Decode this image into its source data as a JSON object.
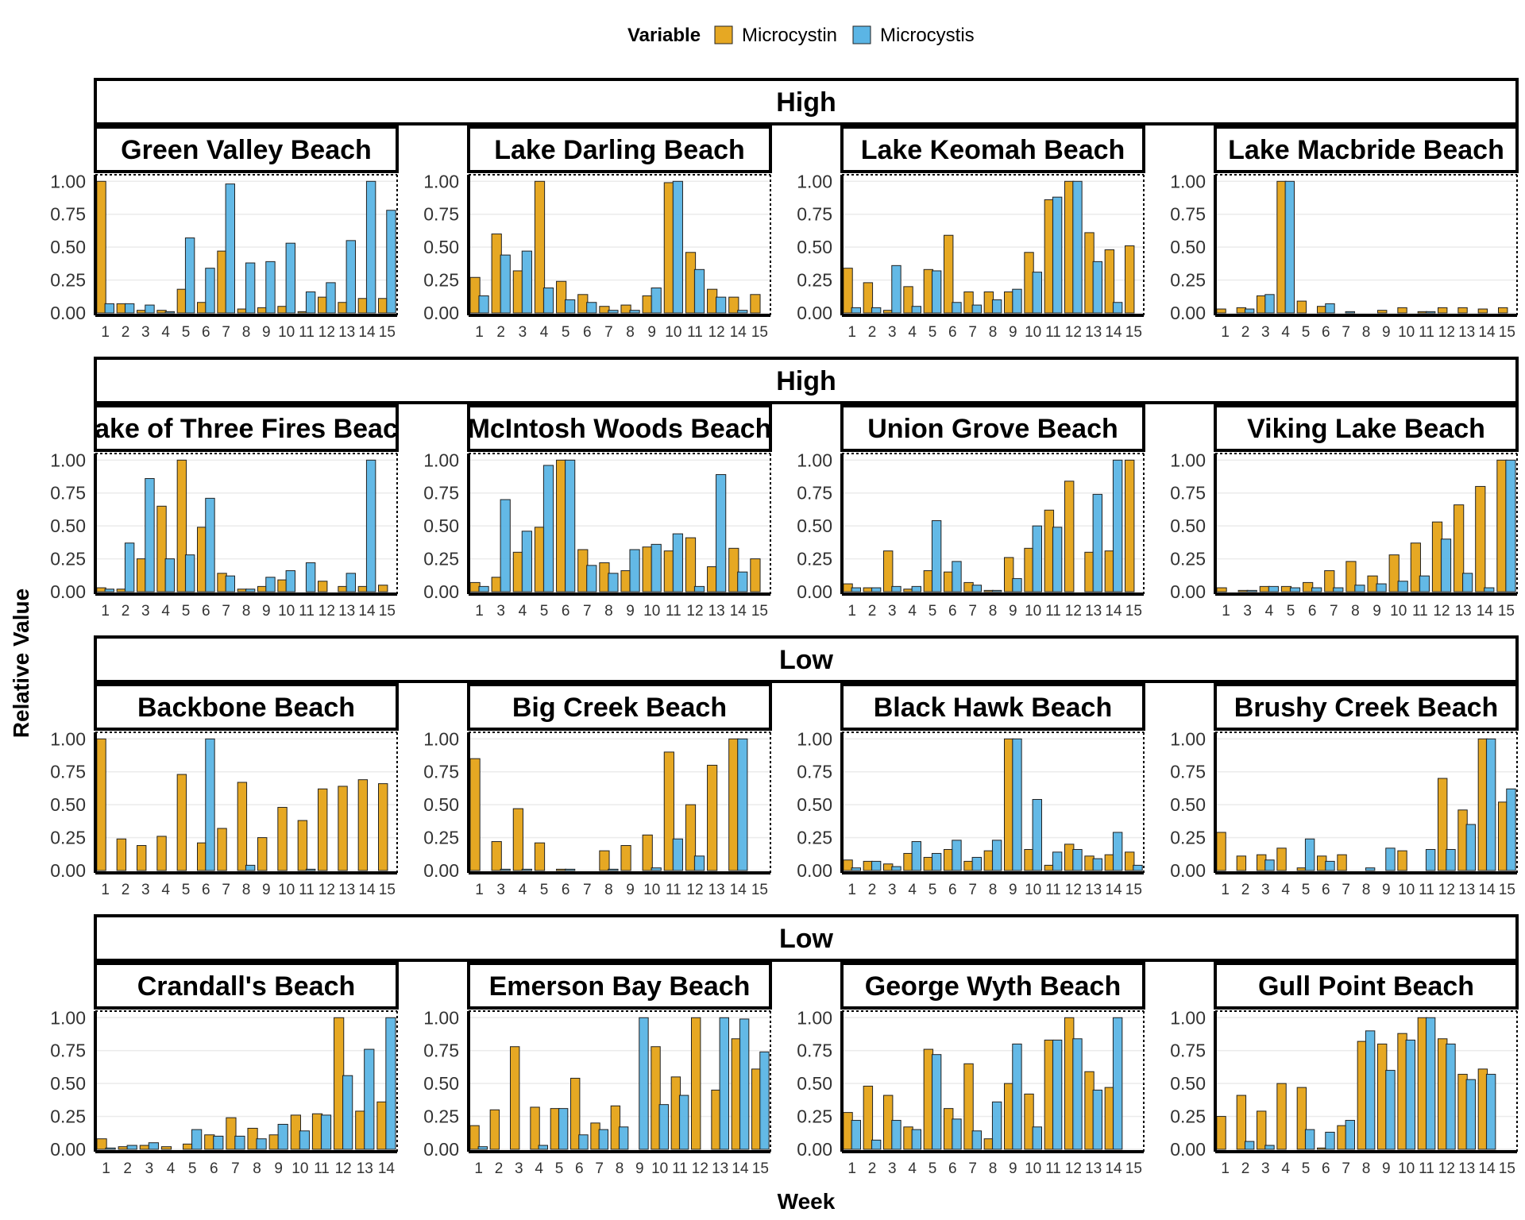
{
  "chart_data": {
    "type": "bar",
    "xlabel": "Week",
    "ylabel": "Relative Value",
    "ylim": [
      0,
      1.05
    ],
    "yticks": [
      "0.00",
      "0.25",
      "0.50",
      "0.75",
      "1.00"
    ],
    "legend": {
      "title": "Variable",
      "position": "top",
      "entries": [
        {
          "name": "Microcystin",
          "color": "#E6A823"
        },
        {
          "name": "Microcystis",
          "color": "#5BB5E5"
        }
      ]
    },
    "rows": [
      {
        "group": "High",
        "panels": [
          {
            "title": "Green Valley Beach",
            "weeks": [
              "1",
              "2",
              "3",
              "4",
              "5",
              "6",
              "7",
              "8",
              "9",
              "10",
              "11",
              "12",
              "13",
              "14",
              "15"
            ],
            "microcystin": [
              1.0,
              0.07,
              0.02,
              0.02,
              0.18,
              0.08,
              0.47,
              0.03,
              0.04,
              0.05,
              0.01,
              0.12,
              0.08,
              0.11,
              0.11
            ],
            "microcystis": [
              0.07,
              0.07,
              0.06,
              0.01,
              0.57,
              0.34,
              0.98,
              0.38,
              0.39,
              0.53,
              0.16,
              0.23,
              0.55,
              1.0,
              0.78
            ]
          },
          {
            "title": "Lake Darling Beach",
            "weeks": [
              "1",
              "2",
              "3",
              "4",
              "5",
              "6",
              "7",
              "8",
              "9",
              "10",
              "11",
              "12",
              "14",
              "15"
            ],
            "microcystin": [
              0.27,
              0.6,
              0.32,
              1.0,
              0.24,
              0.14,
              0.05,
              0.06,
              0.13,
              0.99,
              0.46,
              0.18,
              0.12,
              0.14
            ],
            "microcystis": [
              0.13,
              0.44,
              0.47,
              0.19,
              0.1,
              0.08,
              0.02,
              0.02,
              0.19,
              1.0,
              0.33,
              0.12,
              0.02,
              0.0
            ]
          },
          {
            "title": "Lake Keomah Beach",
            "weeks": [
              "1",
              "2",
              "3",
              "4",
              "5",
              "6",
              "7",
              "8",
              "9",
              "10",
              "11",
              "12",
              "13",
              "14",
              "15"
            ],
            "microcystin": [
              0.34,
              0.23,
              0.02,
              0.2,
              0.33,
              0.59,
              0.16,
              0.16,
              0.16,
              0.46,
              0.86,
              1.0,
              0.61,
              0.48,
              0.51
            ],
            "microcystis": [
              0.04,
              0.04,
              0.36,
              0.05,
              0.32,
              0.08,
              0.06,
              0.1,
              0.18,
              0.31,
              0.88,
              1.0,
              0.39,
              0.08,
              0.0
            ]
          },
          {
            "title": "Lake Macbride Beach",
            "weeks": [
              "1",
              "2",
              "3",
              "4",
              "5",
              "6",
              "7",
              "8",
              "9",
              "10",
              "11",
              "12",
              "13",
              "14",
              "15"
            ],
            "microcystin": [
              0.03,
              0.04,
              0.13,
              1.0,
              0.09,
              0.05,
              0.0,
              0.0,
              0.02,
              0.04,
              0.01,
              0.04,
              0.04,
              0.03,
              0.04
            ],
            "microcystis": [
              0.0,
              0.03,
              0.14,
              1.0,
              0.0,
              0.07,
              0.01,
              0.0,
              0.0,
              0.0,
              0.01,
              0.0,
              0.0,
              0.0,
              0.0
            ]
          }
        ]
      },
      {
        "group": "High",
        "panels": [
          {
            "title": "Lake of Three Fires Beach",
            "weeks": [
              "1",
              "2",
              "3",
              "4",
              "5",
              "6",
              "7",
              "8",
              "9",
              "10",
              "11",
              "12",
              "13",
              "14",
              "15"
            ],
            "microcystin": [
              0.03,
              0.02,
              0.25,
              0.65,
              1.0,
              0.49,
              0.14,
              0.02,
              0.04,
              0.09,
              0.0,
              0.08,
              0.04,
              0.04,
              0.05
            ],
            "microcystis": [
              0.02,
              0.37,
              0.86,
              0.25,
              0.28,
              0.71,
              0.12,
              0.02,
              0.11,
              0.16,
              0.22,
              0.0,
              0.14,
              1.0,
              0.0
            ]
          },
          {
            "title": "McIntosh Woods Beach",
            "weeks": [
              "1",
              "3",
              "4",
              "5",
              "6",
              "7",
              "8",
              "9",
              "10",
              "11",
              "12",
              "13",
              "14",
              "15"
            ],
            "microcystin": [
              0.07,
              0.11,
              0.3,
              0.49,
              1.0,
              0.32,
              0.22,
              0.16,
              0.34,
              0.31,
              0.41,
              0.19,
              0.33,
              0.25
            ],
            "microcystis": [
              0.04,
              0.7,
              0.46,
              0.96,
              1.0,
              0.2,
              0.14,
              0.32,
              0.36,
              0.44,
              0.04,
              0.89,
              0.15,
              0.0
            ]
          },
          {
            "title": "Union Grove Beach",
            "weeks": [
              "1",
              "2",
              "3",
              "4",
              "5",
              "6",
              "7",
              "8",
              "9",
              "10",
              "11",
              "12",
              "13",
              "14",
              "15"
            ],
            "microcystin": [
              0.06,
              0.03,
              0.31,
              0.02,
              0.16,
              0.15,
              0.07,
              0.01,
              0.26,
              0.33,
              0.62,
              0.84,
              0.3,
              0.31,
              1.0
            ],
            "microcystis": [
              0.03,
              0.03,
              0.04,
              0.04,
              0.54,
              0.23,
              0.05,
              0.01,
              0.1,
              0.5,
              0.49,
              0.0,
              0.74,
              1.0,
              0.0
            ]
          },
          {
            "title": "Viking Lake Beach",
            "weeks": [
              "1",
              "3",
              "4",
              "5",
              "6",
              "7",
              "8",
              "9",
              "10",
              "11",
              "12",
              "13",
              "14",
              "15"
            ],
            "microcystin": [
              0.03,
              0.01,
              0.04,
              0.04,
              0.07,
              0.16,
              0.23,
              0.12,
              0.28,
              0.37,
              0.53,
              0.66,
              0.8,
              1.0
            ],
            "microcystis": [
              0.0,
              0.01,
              0.04,
              0.03,
              0.03,
              0.03,
              0.05,
              0.06,
              0.08,
              0.12,
              0.4,
              0.14,
              0.03,
              1.0
            ]
          }
        ]
      },
      {
        "group": "Low",
        "panels": [
          {
            "title": "Backbone Beach",
            "weeks": [
              "1",
              "2",
              "3",
              "4",
              "5",
              "6",
              "7",
              "8",
              "9",
              "10",
              "11",
              "12",
              "13",
              "14",
              "15"
            ],
            "microcystin": [
              1.0,
              0.24,
              0.19,
              0.26,
              0.73,
              0.21,
              0.32,
              0.67,
              0.25,
              0.48,
              0.38,
              0.62,
              0.64,
              0.69,
              0.66
            ],
            "microcystis": [
              0.0,
              0.0,
              0.0,
              0.0,
              0.0,
              1.0,
              0.0,
              0.04,
              0.0,
              0.0,
              0.01,
              0.0,
              0.0,
              0.0,
              0.0
            ]
          },
          {
            "title": "Big Creek Beach",
            "weeks": [
              "1",
              "3",
              "4",
              "5",
              "6",
              "7",
              "8",
              "9",
              "10",
              "11",
              "12",
              "13",
              "14",
              "15"
            ],
            "microcystin": [
              0.85,
              0.22,
              0.47,
              0.21,
              0.01,
              0.0,
              0.15,
              0.19,
              0.27,
              0.9,
              0.5,
              0.8,
              1.0,
              0.0
            ],
            "microcystis": [
              0.0,
              0.01,
              0.01,
              0.0,
              0.01,
              0.0,
              0.01,
              0.0,
              0.02,
              0.24,
              0.11,
              0.0,
              1.0,
              0.0
            ]
          },
          {
            "title": "Black Hawk Beach",
            "weeks": [
              "1",
              "2",
              "3",
              "4",
              "5",
              "6",
              "7",
              "8",
              "9",
              "10",
              "11",
              "12",
              "13",
              "14",
              "15"
            ],
            "microcystin": [
              0.08,
              0.07,
              0.05,
              0.13,
              0.1,
              0.16,
              0.07,
              0.15,
              1.0,
              0.16,
              0.04,
              0.2,
              0.11,
              0.12,
              0.14
            ],
            "microcystis": [
              0.02,
              0.07,
              0.03,
              0.22,
              0.13,
              0.23,
              0.1,
              0.23,
              1.0,
              0.54,
              0.14,
              0.16,
              0.09,
              0.29,
              0.04
            ]
          },
          {
            "title": "Brushy Creek Beach",
            "weeks": [
              "1",
              "2",
              "3",
              "4",
              "5",
              "6",
              "7",
              "8",
              "9",
              "10",
              "11",
              "12",
              "13",
              "14",
              "15"
            ],
            "microcystin": [
              0.29,
              0.11,
              0.12,
              0.17,
              0.02,
              0.11,
              0.12,
              0.0,
              0.0,
              0.15,
              0.0,
              0.7,
              0.46,
              1.0,
              0.52
            ],
            "microcystis": [
              0.0,
              0.0,
              0.08,
              0.0,
              0.24,
              0.07,
              0.0,
              0.02,
              0.17,
              0.0,
              0.16,
              0.16,
              0.35,
              1.0,
              0.62
            ]
          }
        ]
      },
      {
        "group": "Low",
        "panels": [
          {
            "title": "Crandall's Beach",
            "weeks": [
              "1",
              "2",
              "3",
              "4",
              "5",
              "6",
              "7",
              "8",
              "9",
              "10",
              "11",
              "12",
              "13",
              "14"
            ],
            "microcystin": [
              0.08,
              0.02,
              0.03,
              0.02,
              0.04,
              0.11,
              0.24,
              0.16,
              0.11,
              0.26,
              0.27,
              1.0,
              0.29,
              0.36
            ],
            "microcystis": [
              0.01,
              0.03,
              0.05,
              0.0,
              0.15,
              0.1,
              0.1,
              0.08,
              0.19,
              0.14,
              0.26,
              0.56,
              0.76,
              1.0
            ]
          },
          {
            "title": "Emerson Bay Beach",
            "weeks": [
              "1",
              "2",
              "3",
              "4",
              "5",
              "6",
              "7",
              "8",
              "9",
              "10",
              "11",
              "12",
              "13",
              "14",
              "15"
            ],
            "microcystin": [
              0.18,
              0.3,
              0.78,
              0.32,
              0.31,
              0.54,
              0.2,
              0.33,
              0.0,
              0.78,
              0.55,
              1.0,
              0.45,
              0.84,
              0.61
            ],
            "microcystis": [
              0.02,
              0.0,
              0.0,
              0.03,
              0.31,
              0.11,
              0.15,
              0.17,
              1.0,
              0.34,
              0.41,
              0.0,
              1.0,
              0.99,
              0.74
            ]
          },
          {
            "title": "George Wyth Beach",
            "weeks": [
              "1",
              "2",
              "3",
              "4",
              "5",
              "6",
              "7",
              "8",
              "9",
              "10",
              "11",
              "12",
              "13",
              "14",
              "15"
            ],
            "microcystin": [
              0.28,
              0.48,
              0.41,
              0.17,
              0.76,
              0.31,
              0.65,
              0.08,
              0.5,
              0.42,
              0.83,
              1.0,
              0.59,
              0.47,
              0.0
            ],
            "microcystis": [
              0.22,
              0.07,
              0.22,
              0.15,
              0.72,
              0.23,
              0.14,
              0.36,
              0.8,
              0.17,
              0.83,
              0.84,
              0.45,
              1.0,
              0.0
            ]
          },
          {
            "title": "Gull Point Beach",
            "weeks": [
              "1",
              "2",
              "3",
              "4",
              "5",
              "6",
              "7",
              "8",
              "9",
              "10",
              "11",
              "12",
              "13",
              "14",
              "15"
            ],
            "microcystin": [
              0.25,
              0.41,
              0.29,
              0.5,
              0.47,
              0.01,
              0.18,
              0.82,
              0.8,
              0.88,
              1.0,
              0.84,
              0.57,
              0.61,
              0.0
            ],
            "microcystis": [
              0.0,
              0.06,
              0.03,
              0.0,
              0.15,
              0.13,
              0.22,
              0.9,
              0.6,
              0.83,
              1.0,
              0.8,
              0.53,
              0.57,
              0.0
            ]
          }
        ]
      }
    ]
  }
}
